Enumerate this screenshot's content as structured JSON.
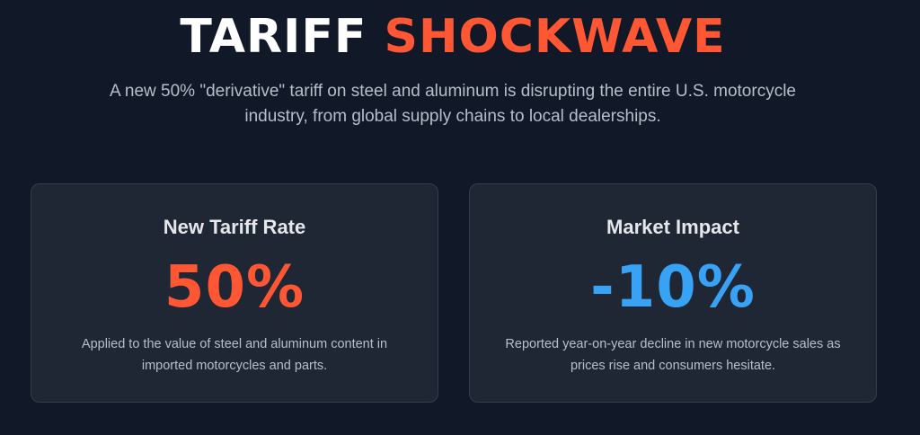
{
  "hero": {
    "title_part1": "TARIFF",
    "title_part2": "SHOCKWAVE",
    "subtitle": "A new 50% \"derivative\" tariff on steel and aluminum is disrupting the entire U.S. motorcycle industry, from global supply chains to local dealerships."
  },
  "cards": [
    {
      "title": "New Tariff Rate",
      "stat": "50%",
      "description": "Applied to the value of steel and aluminum content in imported motorcycles and parts."
    },
    {
      "title": "Market Impact",
      "stat": "-10%",
      "description": "Reported year-on-year decline in new motorcycle sales as prices rise and consumers hesitate."
    }
  ],
  "colors": {
    "background": "#111827",
    "card_background": "#1f2735",
    "accent_orange": "#ff5733",
    "accent_blue": "#38a2f5"
  }
}
